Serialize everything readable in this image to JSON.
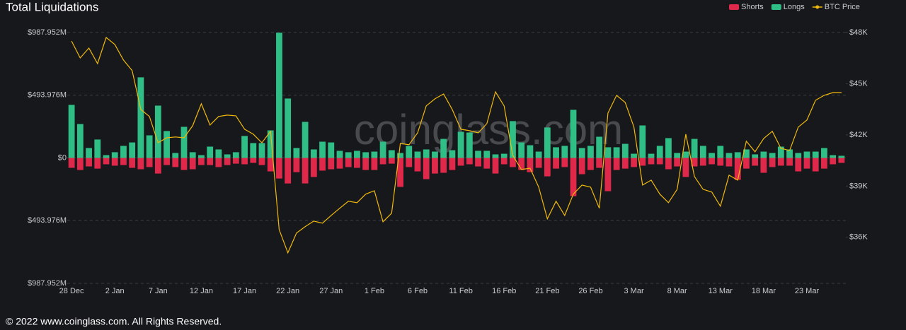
{
  "chart_data": {
    "type": "bar",
    "title": "Total Liquidations",
    "watermark": "coinglass.com",
    "footer": "© 2022 www.coinglass.com. All Rights Reserved.",
    "legend": "top-right",
    "grid": true,
    "categories": [
      "28 Dec",
      null,
      null,
      null,
      null,
      "2 Jan",
      null,
      null,
      null,
      null,
      "7 Jan",
      null,
      null,
      null,
      null,
      "12 Jan",
      null,
      null,
      null,
      null,
      "17 Jan",
      null,
      null,
      null,
      null,
      "22 Jan",
      null,
      null,
      null,
      null,
      "27 Jan",
      null,
      null,
      null,
      null,
      "1 Feb",
      null,
      null,
      null,
      null,
      "6 Feb",
      null,
      null,
      null,
      null,
      "11 Feb",
      null,
      null,
      null,
      null,
      "16 Feb",
      null,
      null,
      null,
      null,
      "21 Feb",
      null,
      null,
      null,
      null,
      "26 Feb",
      null,
      null,
      null,
      null,
      "3 Mar",
      null,
      null,
      null,
      null,
      "8 Mar",
      null,
      null,
      null,
      null,
      "13 Mar",
      null,
      null,
      null,
      null,
      "18 Mar",
      null,
      null,
      null,
      null,
      "23 Mar",
      null,
      null,
      null,
      null
    ],
    "ylim": [
      -987.952,
      987.952
    ],
    "yticks": [
      {
        "value": 987.952,
        "label": "$987.952M"
      },
      {
        "value": 493.976,
        "label": "$493.976M"
      },
      {
        "value": 0,
        "label": "$0"
      },
      {
        "value": -493.976,
        "label": "$493.976M"
      },
      {
        "value": -987.952,
        "label": "$987.952M"
      }
    ],
    "y2lim": [
      33300,
      48000
    ],
    "y2ticks": [
      {
        "value": 48000,
        "label": "$48K"
      },
      {
        "value": 45000,
        "label": "$45K"
      },
      {
        "value": 42000,
        "label": "$42K"
      },
      {
        "value": 39000,
        "label": "$39K"
      },
      {
        "value": 36000,
        "label": "$36K"
      }
    ],
    "series": [
      {
        "name": "Shorts",
        "color": "#e0294a",
        "values": [
          -78,
          -95,
          -67,
          -84,
          -50,
          -61,
          -56,
          -78,
          -89,
          -72,
          -123,
          -56,
          -72,
          -95,
          -89,
          -56,
          -56,
          -72,
          -56,
          -45,
          -50,
          -39,
          -56,
          -106,
          -162,
          -201,
          -112,
          -201,
          -150,
          -100,
          -89,
          -84,
          -72,
          -78,
          -95,
          -95,
          -50,
          -45,
          -228,
          -72,
          -106,
          -167,
          -123,
          -117,
          -95,
          -61,
          -50,
          -67,
          -84,
          -123,
          -50,
          -72,
          -95,
          -112,
          -78,
          -145,
          -84,
          -72,
          -301,
          -128,
          -95,
          -78,
          -262,
          -95,
          -84,
          -72,
          -61,
          -50,
          -50,
          -89,
          -67,
          -150,
          -67,
          -61,
          -50,
          -61,
          -67,
          -173,
          -84,
          -61,
          -117,
          -72,
          -61,
          -61,
          -106,
          -84,
          -106,
          -84,
          -50,
          -39
        ]
      },
      {
        "name": "Longs",
        "color": "#2fbf86",
        "values": [
          418,
          267,
          78,
          145,
          22,
          45,
          95,
          122,
          635,
          178,
          412,
          212,
          39,
          245,
          45,
          22,
          89,
          67,
          28,
          45,
          173,
          117,
          117,
          217,
          986,
          468,
          78,
          284,
          67,
          128,
          122,
          56,
          45,
          56,
          45,
          50,
          128,
          61,
          39,
          95,
          50,
          67,
          50,
          150,
          61,
          206,
          200,
          56,
          56,
          28,
          33,
          290,
          122,
          100,
          50,
          240,
          84,
          95,
          379,
          78,
          95,
          167,
          84,
          84,
          111,
          33,
          256,
          33,
          95,
          156,
          39,
          50,
          150,
          95,
          39,
          95,
          39,
          45,
          67,
          28,
          50,
          39,
          89,
          67,
          39,
          50,
          50,
          78,
          22,
          17
        ]
      },
      {
        "name": "BTC Price",
        "color": "#f0b90b",
        "type": "line",
        "axis": "y2",
        "values": [
          47500,
          46510,
          47090,
          46180,
          47710,
          47300,
          46390,
          45770,
          43490,
          43080,
          41540,
          41830,
          41880,
          41830,
          42540,
          43820,
          42580,
          43080,
          43160,
          43120,
          42330,
          42040,
          41540,
          42210,
          36450,
          35090,
          36250,
          36620,
          36950,
          36830,
          37280,
          37700,
          38110,
          38030,
          38530,
          38730,
          36910,
          37410,
          41500,
          41420,
          42120,
          43700,
          44110,
          44400,
          43490,
          42330,
          42250,
          42120,
          42660,
          44520,
          43700,
          40800,
          39970,
          40050,
          38940,
          37080,
          38110,
          37280,
          38530,
          39060,
          38940,
          37700,
          43280,
          44320,
          43900,
          42460,
          39060,
          39350,
          38530,
          38030,
          38810,
          42040,
          39560,
          38810,
          38650,
          37820,
          39640,
          39350,
          41630,
          41010,
          41790,
          42210,
          41210,
          41090,
          42460,
          42870,
          44030,
          44320,
          44480,
          44480
        ]
      }
    ]
  }
}
